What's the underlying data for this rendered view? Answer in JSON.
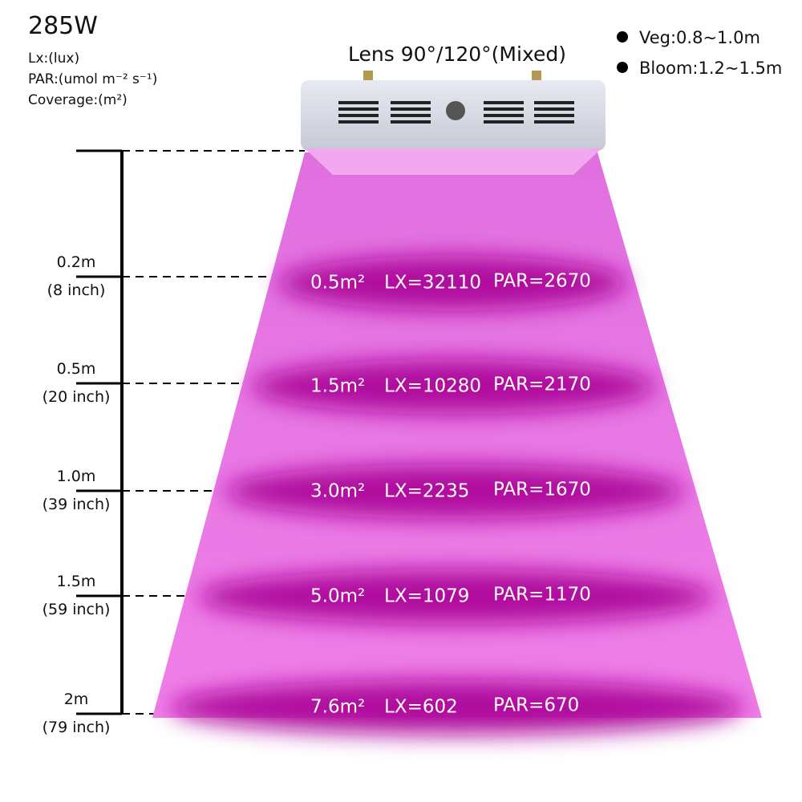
{
  "header": {
    "title": "285W",
    "legend": [
      "Lx:(lux)",
      "PAR:(umol m⁻² s⁻¹)",
      "Coverage:(m²)"
    ]
  },
  "lens": "Lens 90°/120°(Mixed)",
  "modes": [
    "Veg:0.8~1.0m",
    "Bloom:1.2~1.5m"
  ],
  "levels": [
    {
      "height": "0.2m",
      "inches": "(8 inch)",
      "coverage": "0.5m²",
      "lx": "LX=32110",
      "par": "PAR=2670"
    },
    {
      "height": "0.5m",
      "inches": "(20 inch)",
      "coverage": "1.5m²",
      "lx": "LX=10280",
      "par": "PAR=2170"
    },
    {
      "height": "1.0m",
      "inches": "(39 inch)",
      "coverage": "3.0m²",
      "lx": "LX=2235",
      "par": "PAR=1670"
    },
    {
      "height": "1.5m",
      "inches": "(59 inch)",
      "coverage": "5.0m²",
      "lx": "LX=1079",
      "par": "PAR=1170"
    },
    {
      "height": "2m",
      "inches": "(79 inch)",
      "coverage": "7.6m²",
      "lx": "LX=602",
      "par": "PAR=670"
    }
  ]
}
